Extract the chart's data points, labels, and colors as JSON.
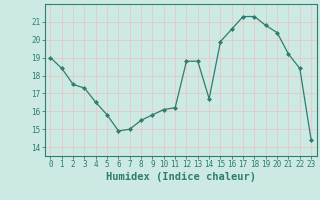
{
  "xlabel": "Humidex (Indice chaleur)",
  "x": [
    0,
    1,
    2,
    3,
    4,
    5,
    6,
    7,
    8,
    9,
    10,
    11,
    12,
    13,
    14,
    15,
    16,
    17,
    18,
    19,
    20,
    21,
    22,
    23
  ],
  "y": [
    19.0,
    18.4,
    17.5,
    17.3,
    16.5,
    15.8,
    14.9,
    15.0,
    15.5,
    15.8,
    16.1,
    16.2,
    18.8,
    18.8,
    16.7,
    19.9,
    20.6,
    21.3,
    21.3,
    20.8,
    20.4,
    19.2,
    18.4,
    14.4
  ],
  "line_color": "#2e7d6e",
  "marker_color": "#2e7d6e",
  "bg_color": "#cce9e4",
  "grid_color": "#f0f0f0",
  "axis_color": "#2e7d6e",
  "ylim": [
    13.5,
    22.0
  ],
  "yticks": [
    14,
    15,
    16,
    17,
    18,
    19,
    20,
    21
  ],
  "xtick_labels": [
    "0",
    "1",
    "2",
    "3",
    "4",
    "5",
    "6",
    "7",
    "8",
    "9",
    "10",
    "11",
    "12",
    "13",
    "14",
    "15",
    "16",
    "17",
    "18",
    "19",
    "20",
    "21",
    "22",
    "23"
  ],
  "tick_fontsize": 5.5,
  "xlabel_fontsize": 7.5
}
